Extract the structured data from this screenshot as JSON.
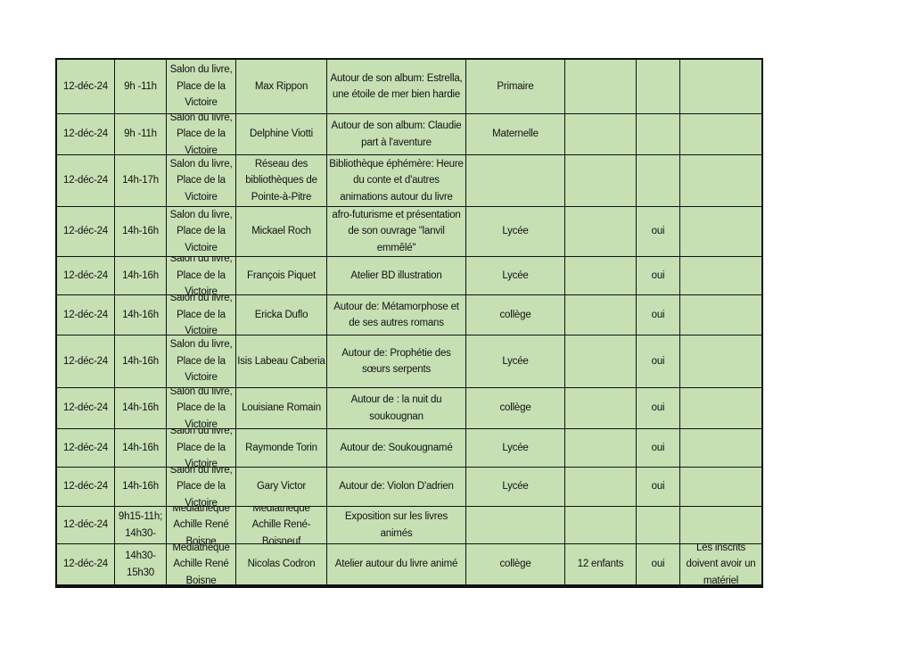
{
  "table": {
    "rows": [
      [
        "12-déc-24",
        "9h -11h",
        "Salon du livre, Place de la Victoire",
        "Max Rippon",
        "Autour de son album: Estrella, une étoile de mer bien hardie",
        "Primaire",
        "",
        "",
        ""
      ],
      [
        "12-déc-24",
        "9h -11h",
        "Salon du livre, Place de la Victoire",
        "Delphine Viotti",
        "Autour de son album: Claudie part à l'aventure",
        "Maternelle",
        "",
        "",
        ""
      ],
      [
        "12-déc-24",
        "14h-17h",
        "Salon du livre, Place de la Victoire",
        "Réseau des bibliothèques de Pointe-à-Pitre",
        "Bibliothèque éphémère: Heure du conte et d'autres animations autour du livre",
        "",
        "",
        "",
        ""
      ],
      [
        "12-déc-24",
        "14h-16h",
        "Salon du livre, Place de la Victoire",
        "Mickael Roch",
        "afro-futurisme et présentation de son ouvrage \"lanvil emmêlé\"",
        "Lycée",
        "",
        "oui",
        ""
      ],
      [
        "12-déc-24",
        "14h-16h",
        "Salon du livre, Place de la Victoire",
        "François Piquet",
        "Atelier BD illustration",
        "Lycée",
        "",
        "oui",
        ""
      ],
      [
        "12-déc-24",
        "14h-16h",
        "Salon du livre, Place de la Victoire",
        "Ericka Duflo",
        "Autour de: Métamorphose et de ses autres romans",
        "collège",
        "",
        "oui",
        ""
      ],
      [
        "12-déc-24",
        "14h-16h",
        "Salon du livre, Place de la Victoire",
        "Isis Labeau Caberia",
        "Autour de: Prophétie des sœurs serpents",
        "Lycée",
        "",
        "oui",
        ""
      ],
      [
        "12-déc-24",
        "14h-16h",
        "Salon du livre, Place de la Victoire",
        "Louisiane Romain",
        "Autour de : la nuit du soukougnan",
        "collège",
        "",
        "oui",
        ""
      ],
      [
        "12-déc-24",
        "14h-16h",
        "Salon du livre, Place de la Victoire",
        "Raymonde Torin",
        "Autour de: Soukougnamé",
        "Lycée",
        "",
        "oui",
        ""
      ],
      [
        "12-déc-24",
        "14h-16h",
        "Salon du livre, Place de la Victoire",
        "Gary Victor",
        "Autour de: Violon D'adrien",
        "Lycée",
        "",
        "oui",
        ""
      ],
      [
        "12-déc-24",
        "9h15-11h; 14h30-",
        "Médiathèque Achille René  Boisne",
        "Médiathèque Achille René-Boisneuf",
        "Exposition sur les livres animés",
        "",
        "",
        "",
        ""
      ],
      [
        "12-déc-24",
        "14h30-15h30",
        "Médiathèque Achille René  Boisne",
        "Nicolas Codron",
        "Atelier autour du livre animé",
        "collège",
        "12 enfants",
        "oui",
        "Les inscrits doivent avoir un matériel"
      ]
    ]
  },
  "colors": {
    "cell_background": "#c6e0b4",
    "border": "#111111"
  }
}
